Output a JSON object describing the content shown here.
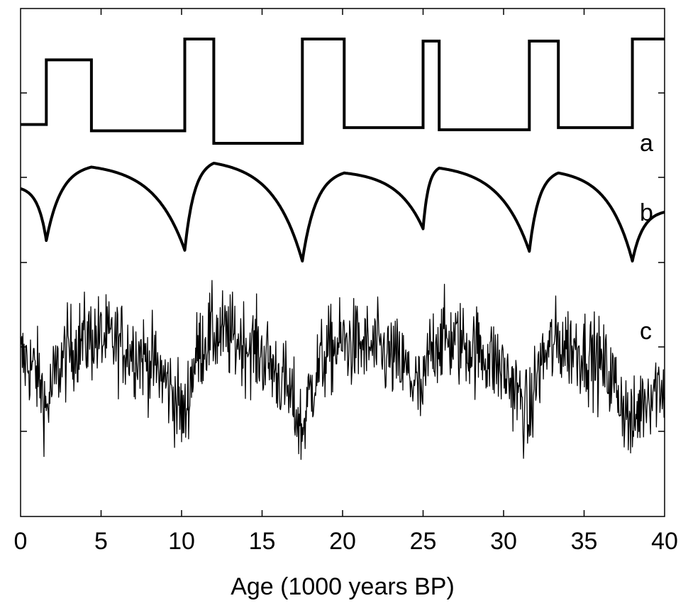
{
  "chart_data": {
    "type": "line",
    "title": "",
    "xlabel": "Age (1000 years BP)",
    "ylabel": "",
    "xlim": [
      0,
      40
    ],
    "xticks": [
      "0",
      "5",
      "10",
      "15",
      "20",
      "25",
      "30",
      "35",
      "40"
    ],
    "grid": false,
    "legend": "none",
    "series": [
      {
        "panel": "a",
        "style": "thick step line",
        "color": "#000000",
        "x": [
          0,
          1.6,
          1.6,
          4.4,
          4.4,
          10.2,
          10.2,
          12.0,
          12.0,
          17.5,
          17.5,
          20.1,
          20.1,
          25.0,
          25.0,
          26.0,
          26.0,
          31.6,
          31.6,
          33.4,
          33.4,
          38.0,
          38.0,
          40.0
        ],
        "y": [
          0.18,
          0.18,
          0.8,
          0.8,
          0.12,
          0.12,
          1.0,
          1.0,
          0.0,
          0.0,
          1.0,
          1.0,
          0.15,
          0.15,
          0.98,
          0.98,
          0.13,
          0.13,
          0.98,
          0.98,
          0.15,
          0.15,
          1.0,
          1.0
        ]
      },
      {
        "panel": "b",
        "style": "thick smooth sawtooth",
        "color": "#000000",
        "segments": [
          {
            "x0": 0,
            "x1": 1.6,
            "y0": 0.74,
            "y1": 0.21,
            "shape": "decay"
          },
          {
            "x0": 1.6,
            "x1": 4.4,
            "y0": 0.21,
            "y1": 0.96,
            "shape": "rise"
          },
          {
            "x0": 4.4,
            "x1": 10.2,
            "y0": 0.96,
            "y1": 0.11,
            "shape": "decay"
          },
          {
            "x0": 10.2,
            "x1": 12.0,
            "y0": 0.11,
            "y1": 1.0,
            "shape": "rise"
          },
          {
            "x0": 12.0,
            "x1": 17.5,
            "y0": 1.0,
            "y1": 0.0,
            "shape": "decay"
          },
          {
            "x0": 17.5,
            "x1": 20.1,
            "y0": 0.0,
            "y1": 0.9,
            "shape": "rise"
          },
          {
            "x0": 20.1,
            "x1": 25.0,
            "y0": 0.9,
            "y1": 0.33,
            "shape": "decay"
          },
          {
            "x0": 25.0,
            "x1": 26.0,
            "y0": 0.33,
            "y1": 0.95,
            "shape": "rise"
          },
          {
            "x0": 26.0,
            "x1": 31.6,
            "y0": 0.95,
            "y1": 0.1,
            "shape": "decay"
          },
          {
            "x0": 31.6,
            "x1": 33.4,
            "y0": 0.1,
            "y1": 0.9,
            "shape": "rise"
          },
          {
            "x0": 33.4,
            "x1": 38.0,
            "y0": 0.9,
            "y1": 0.0,
            "shape": "decay"
          },
          {
            "x0": 38.0,
            "x1": 40.0,
            "y0": 0.0,
            "y1": 0.5,
            "shape": "rise"
          }
        ]
      },
      {
        "panel": "c",
        "style": "thin noisy line (b plus high-frequency noise)",
        "color": "#000000",
        "noise_amplitude": 0.22,
        "samples": 1100
      }
    ],
    "panel_labels": [
      "a",
      "b",
      "c"
    ]
  }
}
